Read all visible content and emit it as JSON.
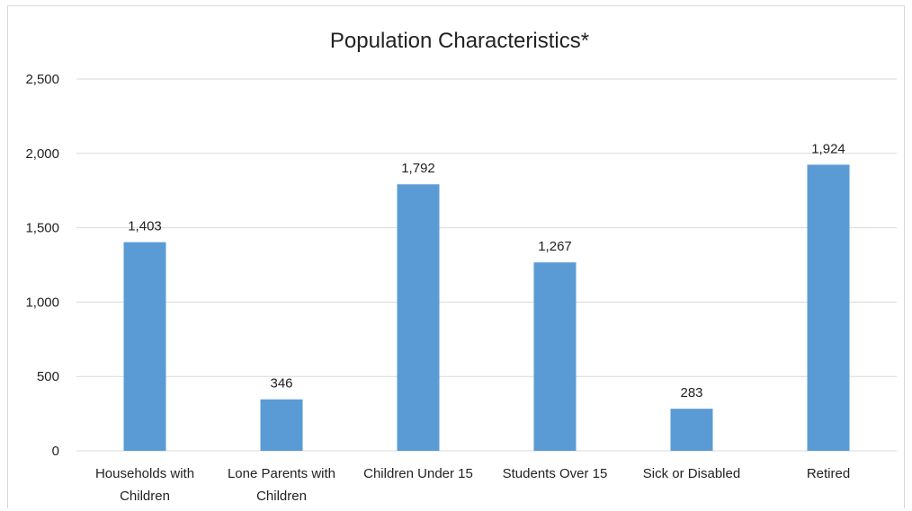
{
  "chart_data": {
    "type": "bar",
    "title": "Population Characteristics*",
    "categories": [
      [
        "Households with",
        "Children"
      ],
      [
        "Lone Parents with",
        "Children"
      ],
      [
        "Children Under 15"
      ],
      [
        "Students Over 15"
      ],
      [
        "Sick or Disabled"
      ],
      [
        "Retired"
      ]
    ],
    "values": [
      1403,
      346,
      1792,
      1267,
      283,
      1924
    ],
    "value_labels": [
      "1,403",
      "346",
      "1,792",
      "1,267",
      "283",
      "1,924"
    ],
    "yticks": [
      0,
      500,
      1000,
      1500,
      2000,
      2500
    ],
    "ytick_labels": [
      "0",
      "500",
      "1,000",
      "1,500",
      "2,000",
      "2,500"
    ],
    "ylim": [
      0,
      2500
    ],
    "grid": true,
    "bar_color": "#5b9bd5",
    "grid_color": "#d9d9d9"
  }
}
